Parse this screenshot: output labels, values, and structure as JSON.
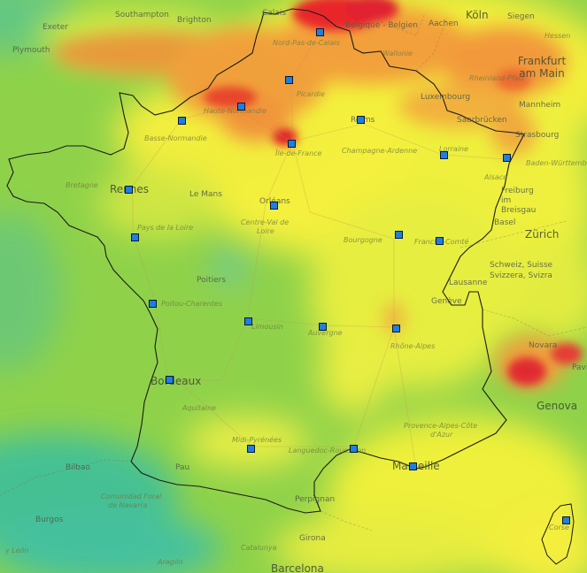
{
  "map": {
    "colors": {
      "background": "#8fd24a",
      "marker_fill": "#1f7fe0",
      "marker_border": "#0a1830",
      "heat_red": "#e8262b",
      "heat_orange": "#f08c2a",
      "heat_yellow": "#f5f03a",
      "heat_green": "#9fd43c",
      "heat_teal": "#3dbfa0"
    },
    "labels": {
      "southampton": "Southampton",
      "brighton": "Brighton",
      "exeter": "Exeter",
      "plymouth": "Plymouth",
      "calais": "Calais",
      "belgique": "Belgique - Belgien",
      "aachen": "Aachen",
      "koln": "Köln",
      "siegen": "Siegen",
      "hessen": "Hessen",
      "nord_pas_de_calais": "Nord-Pas-de-Calais",
      "wallonie": "Wallonie",
      "frankfurt": "Frankfurt am Main",
      "rheinland_pfalz": "Rheinland-Pfalz",
      "luxembourg": "Luxembourg",
      "picardie": "Picardie",
      "haute_normandie": "Haute-Normandie",
      "mannheim": "Mannheim",
      "saarbrucken": "Saarbrücken",
      "reims": "Reims",
      "basse_normandie": "Basse-Normandie",
      "ile_de_france": "Île-de-France",
      "champagne_ardenne": "Champagne-Ardenne",
      "lorraine": "Lorraine",
      "strasbourg": "Strasbourg",
      "baden_wurttemberg": "Baden-Württemberg",
      "bretagne": "Bretagne",
      "rennes": "Rennes",
      "le_mans": "Le Mans",
      "orleans": "Orléans",
      "alsace": "Alsace",
      "freiburg": "Freiburg im Breisgau",
      "pays_de_la_loire": "Pays de la Loire",
      "centre_val_de_loire_1": "Centre-Val de",
      "centre_val_de_loire_2": "Loire",
      "basel": "Basel",
      "zurich": "Zürich",
      "bourgogne": "Bourgogne",
      "franche_comte": "Franche-Comté",
      "schweiz": "Schweiz, Suisse",
      "svizzera": "Svizzera, Svizra",
      "poitiers": "Poitiers",
      "lausanne": "Lausanne",
      "poitou_charentes": "Poitou-Charentes",
      "geneve": "Genève",
      "limousin": "Limousin",
      "auvergne": "Auvergne",
      "rhone_alpes": "Rhône-Alpes",
      "novara": "Novara",
      "pavia": "Pavia",
      "bordeaux": "Bordeaux",
      "genova": "Genova",
      "aquitaine": "Aquitaine",
      "provence": "Provence-Alpes-Côte",
      "provence_2": "d'Azur",
      "midi_pyrenees": "Midi-Pyrénées",
      "languedoc": "Languedoc-Roussillon",
      "marseille": "Marseille",
      "bilbao": "Bilbao",
      "pau": "Pau",
      "comunidad_foral": "Comunidad Foral",
      "de_navarra": "de Navarra",
      "perpignan": "Perpignan",
      "burgos": "Burgos",
      "girona": "Girona",
      "castilla_leon": "y León",
      "catalunya": "Catalunya",
      "aragon": "Aragón",
      "barcelona": "Barcelona",
      "corse": "Corse"
    },
    "stations": [
      {
        "id": "station-lille"
      },
      {
        "id": "station-amiens"
      },
      {
        "id": "station-rouen"
      },
      {
        "id": "station-caen"
      },
      {
        "id": "station-paris"
      },
      {
        "id": "station-reims"
      },
      {
        "id": "station-metz"
      },
      {
        "id": "station-strasbourg"
      },
      {
        "id": "station-rennes"
      },
      {
        "id": "station-orleans"
      },
      {
        "id": "station-nantes"
      },
      {
        "id": "station-dijon"
      },
      {
        "id": "station-besancon"
      },
      {
        "id": "station-poitiers"
      },
      {
        "id": "station-la-rochelle"
      },
      {
        "id": "station-limoges"
      },
      {
        "id": "station-clermont"
      },
      {
        "id": "station-lyon"
      },
      {
        "id": "station-bordeaux"
      },
      {
        "id": "station-toulouse"
      },
      {
        "id": "station-montpellier"
      },
      {
        "id": "station-marseille"
      },
      {
        "id": "station-ajaccio"
      }
    ]
  }
}
